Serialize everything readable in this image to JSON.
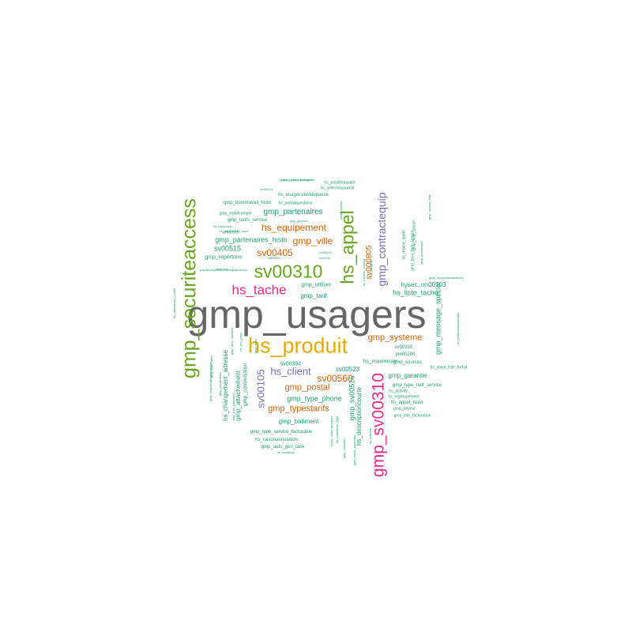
{
  "palette": {
    "gray": "#666666",
    "green": "#66a61e",
    "magenta": "#e7298a",
    "orange": "#d95f02",
    "gold": "#e6ab02",
    "purple": "#7570b3",
    "teal": "#1b9e77"
  },
  "words": [
    {
      "text": "gmp_usagers",
      "color": "gray",
      "weight": 100
    },
    {
      "text": "gmp_securiteaccess",
      "color": "green",
      "weight": 62
    },
    {
      "text": "hs_produit",
      "color": "gold",
      "weight": 66
    },
    {
      "text": "sv00310",
      "color": "green",
      "weight": 56
    },
    {
      "text": "hs_appel",
      "color": "green",
      "weight": 56
    },
    {
      "text": "gmp_sv00310",
      "color": "magenta",
      "weight": 50
    },
    {
      "text": "hs_tache",
      "color": "magenta",
      "weight": 40
    },
    {
      "text": "gmp_contractequip",
      "color": "purple",
      "weight": 34
    },
    {
      "text": "hs_client",
      "color": "purple",
      "weight": 28
    },
    {
      "text": "sv00105",
      "color": "purple",
      "weight": 28
    },
    {
      "text": "gmp_ville",
      "color": "orange",
      "weight": 24
    },
    {
      "text": "hs_equipement",
      "color": "orange",
      "weight": 22
    },
    {
      "text": "sv00405",
      "color": "orange",
      "weight": 22
    },
    {
      "text": "sv00560",
      "color": "orange",
      "weight": 22
    },
    {
      "text": "gmp_systeme",
      "color": "orange",
      "weight": 20
    },
    {
      "text": "gmp_postal",
      "color": "orange",
      "weight": 20
    },
    {
      "text": "gmp_typestarifs",
      "color": "orange",
      "weight": 20
    },
    {
      "text": "sv000805",
      "color": "orange",
      "weight": 18
    },
    {
      "text": "gmp_partenaires",
      "color": "teal",
      "weight": 16
    },
    {
      "text": "gmp_partenaires_histo",
      "color": "teal",
      "weight": 15
    },
    {
      "text": "sv00515",
      "color": "teal",
      "weight": 15
    },
    {
      "text": "gmp_repertoire",
      "color": "teal",
      "weight": 12
    },
    {
      "text": "gmp_utiliser",
      "color": "teal",
      "weight": 12
    },
    {
      "text": "gmp_tarif",
      "color": "teal",
      "weight": 13
    },
    {
      "text": "hysec..rm00103",
      "color": "teal",
      "weight": 14
    },
    {
      "text": "hs_liste_tache",
      "color": "teal",
      "weight": 15
    },
    {
      "text": "gmp_message_special",
      "color": "teal",
      "weight": 15
    },
    {
      "text": "hs_changement_adresse",
      "color": "teal",
      "weight": 14
    },
    {
      "text": "gmp_attachement",
      "color": "teal",
      "weight": 14
    },
    {
      "text": "gmp_commission",
      "color": "teal",
      "weight": 12
    },
    {
      "text": "sv00394",
      "color": "teal",
      "weight": 12
    },
    {
      "text": "sv00523",
      "color": "teal",
      "weight": 14
    },
    {
      "text": "hs_maximiser",
      "color": "teal",
      "weight": 11
    },
    {
      "text": "gmp_type_phone",
      "color": "teal",
      "weight": 15
    },
    {
      "text": "gmp_sv00516",
      "color": "teal",
      "weight": 15
    },
    {
      "text": "hs_descriptioncourte",
      "color": "teal",
      "weight": 13
    },
    {
      "text": "gmp_garantie",
      "color": "teal",
      "weight": 14
    },
    {
      "text": "gmp_batiment",
      "color": "teal",
      "weight": 14
    },
    {
      "text": "gmp_type_service_facturable",
      "color": "teal",
      "weight": 11
    },
    {
      "text": "gmp_auto_gen_task",
      "color": "teal",
      "weight": 10
    },
    {
      "text": "hs_raisonannulation",
      "color": "teal",
      "weight": 10
    },
    {
      "text": "gmp_sources",
      "color": "teal",
      "weight": 11
    },
    {
      "text": "sv00330",
      "color": "teal",
      "weight": 10
    },
    {
      "text": "pm00200",
      "color": "teal",
      "weight": 10
    },
    {
      "text": "gmp_type_tarif_service",
      "color": "teal",
      "weight": 11
    },
    {
      "text": "hs_appel_histo",
      "color": "teal",
      "weight": 11
    },
    {
      "text": "gmp_payeur",
      "color": "teal",
      "weight": 9
    },
    {
      "text": "gmp_info_facturation",
      "color": "teal",
      "weight": 8
    },
    {
      "text": "hs_regroupement",
      "color": "teal",
      "weight": 8
    },
    {
      "text": "hs_activity",
      "color": "teal",
      "weight": 8
    },
    {
      "text": "hs_client_liste_forfait",
      "color": "teal",
      "weight": 8
    },
    {
      "text": "gmp_bonstravail_histo",
      "color": "teal",
      "weight": 10
    },
    {
      "text": "gmp_tarifs_service",
      "color": "teal",
      "weight": 10
    },
    {
      "text": "gmp_statutcompte",
      "color": "teal",
      "weight": 9
    },
    {
      "text": "hs_portailquestions",
      "color": "teal",
      "weight": 8
    },
    {
      "text": "hs_usagersmotdepasse",
      "color": "teal",
      "weight": 10
    },
    {
      "text": "hs_selectionjournal",
      "color": "teal",
      "weight": 8
    },
    {
      "text": "hs_emailtemplate",
      "color": "teal",
      "weight": 8
    },
    {
      "text": "hysec_delta..prospect",
      "color": "teal",
      "weight": 7
    },
    {
      "text": "hs_partenaires_avec",
      "color": "teal",
      "weight": 7
    },
    {
      "text": "hs_historique",
      "color": "teal",
      "weight": 7
    },
    {
      "text": "rm00103",
      "color": "teal",
      "weight": 8
    },
    {
      "text": "gmp_propria",
      "color": "teal",
      "weight": 7
    },
    {
      "text": "gmp_modele",
      "color": "teal",
      "weight": 7
    },
    {
      "text": "rm00102",
      "color": "teal",
      "weight": 7
    },
    {
      "text": "iv40700",
      "color": "teal",
      "weight": 7
    },
    {
      "text": "rm00101",
      "color": "teal",
      "weight": 7
    },
    {
      "text": "sv00324",
      "color": "teal",
      "weight": 7
    },
    {
      "text": "hs_modele_contrat",
      "color": "teal",
      "weight": 7
    },
    {
      "text": "gmp_vale_pasuh",
      "color": "teal",
      "weight": 7
    },
    {
      "text": "hs_repeat_appel",
      "color": "teal",
      "weight": 8
    },
    {
      "text": "gmp_taux_tarif_service",
      "color": "teal",
      "weight": 8
    },
    {
      "text": "gmp_bonstravail",
      "color": "teal",
      "weight": 8
    },
    {
      "text": "gmp_contrat_frms",
      "color": "teal",
      "weight": 7
    },
    {
      "text": "gmp_informationlectures",
      "color": "teal",
      "weight": 7
    },
    {
      "text": "hs_proprietairesachere",
      "color": "teal",
      "weight": 7
    },
    {
      "text": "gmp_responsabledesolution",
      "color": "teal",
      "weight": 6
    },
    {
      "text": "gmp_type_sites",
      "color": "teal",
      "weight": 6
    },
    {
      "text": "gmp_productions",
      "color": "teal",
      "weight": 7
    },
    {
      "text": "gmp_taux_horaires",
      "color": "teal",
      "weight": 7
    },
    {
      "text": "gmp_info_paiement",
      "color": "teal",
      "weight": 7
    },
    {
      "text": "gmp_mois",
      "color": "teal",
      "weight": 7
    },
    {
      "text": "hs_sec_pays",
      "color": "teal",
      "weight": 6
    },
    {
      "text": "gmp_conseils",
      "color": "teal",
      "weight": 6
    },
    {
      "text": "gmp_mode_paiement",
      "color": "teal",
      "weight": 7
    },
    {
      "text": "hs_maximiser_type",
      "color": "teal",
      "weight": 6
    },
    {
      "text": "hs_adresse",
      "color": "teal",
      "weight": 6
    },
    {
      "text": "hs_motifcom",
      "color": "teal",
      "weight": 6
    },
    {
      "text": "hysec_delta..municipalite",
      "color": "teal",
      "weight": 7
    },
    {
      "text": "hysec_delta..prospect",
      "color": "teal",
      "weight": 7
    },
    {
      "text": "rm00101",
      "color": "teal",
      "weight": 6
    },
    {
      "text": "hs_usagers",
      "color": "teal",
      "weight": 7
    },
    {
      "text": "hs_utilisateurs_postal",
      "color": "teal",
      "weight": 6
    },
    {
      "text": "prodscompletslcontenupasconsul",
      "color": "teal",
      "weight": 6
    },
    {
      "text": "rm20101",
      "color": "teal",
      "weight": 7
    }
  ]
}
